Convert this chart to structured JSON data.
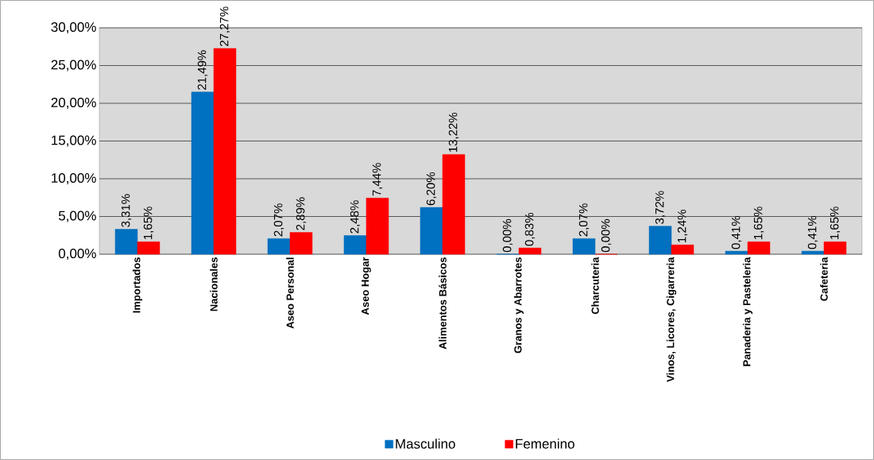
{
  "chart_data": {
    "type": "bar",
    "categories": [
      "Importados",
      "Nacionales",
      "Aseo Personal",
      "Aseo Hogar",
      "Alimentos Básicos",
      "Granos y Abarrotes",
      "Charcuteria",
      "Vinos, Licores, Cigarreria",
      "Panaderia y Pasteleria",
      "Cafeteria"
    ],
    "series": [
      {
        "name": "Masculino",
        "color": "#0070c0",
        "values": [
          3.31,
          21.49,
          2.07,
          2.48,
          6.2,
          0.0,
          2.07,
          3.72,
          0.41,
          0.41
        ],
        "value_labels": [
          "3,31%",
          "21,49%",
          "2,07%",
          "2,48%",
          "6,20%",
          "0,00%",
          "2,07%",
          "3,72%",
          "0,41%",
          "0,41%"
        ]
      },
      {
        "name": "Femenino",
        "color": "#ff0000",
        "values": [
          1.65,
          27.27,
          2.89,
          7.44,
          13.22,
          0.83,
          0.0,
          1.24,
          1.65,
          1.65
        ],
        "value_labels": [
          "1,65%",
          "27,27%",
          "2,89%",
          "7,44%",
          "13,22%",
          "0,83%",
          "0,00%",
          "1,24%",
          "1,65%",
          "1,65%"
        ]
      }
    ],
    "ylim": [
      0,
      30
    ],
    "yticks": [
      {
        "value": 0,
        "label": "0,00%"
      },
      {
        "value": 5,
        "label": "5,00%"
      },
      {
        "value": 10,
        "label": "10,00%"
      },
      {
        "value": 15,
        "label": "15,00%"
      },
      {
        "value": 20,
        "label": "20,00%"
      },
      {
        "value": 25,
        "label": "25,00%"
      },
      {
        "value": 30,
        "label": "30,00%"
      }
    ],
    "grid": "y",
    "legend": "bottom"
  }
}
